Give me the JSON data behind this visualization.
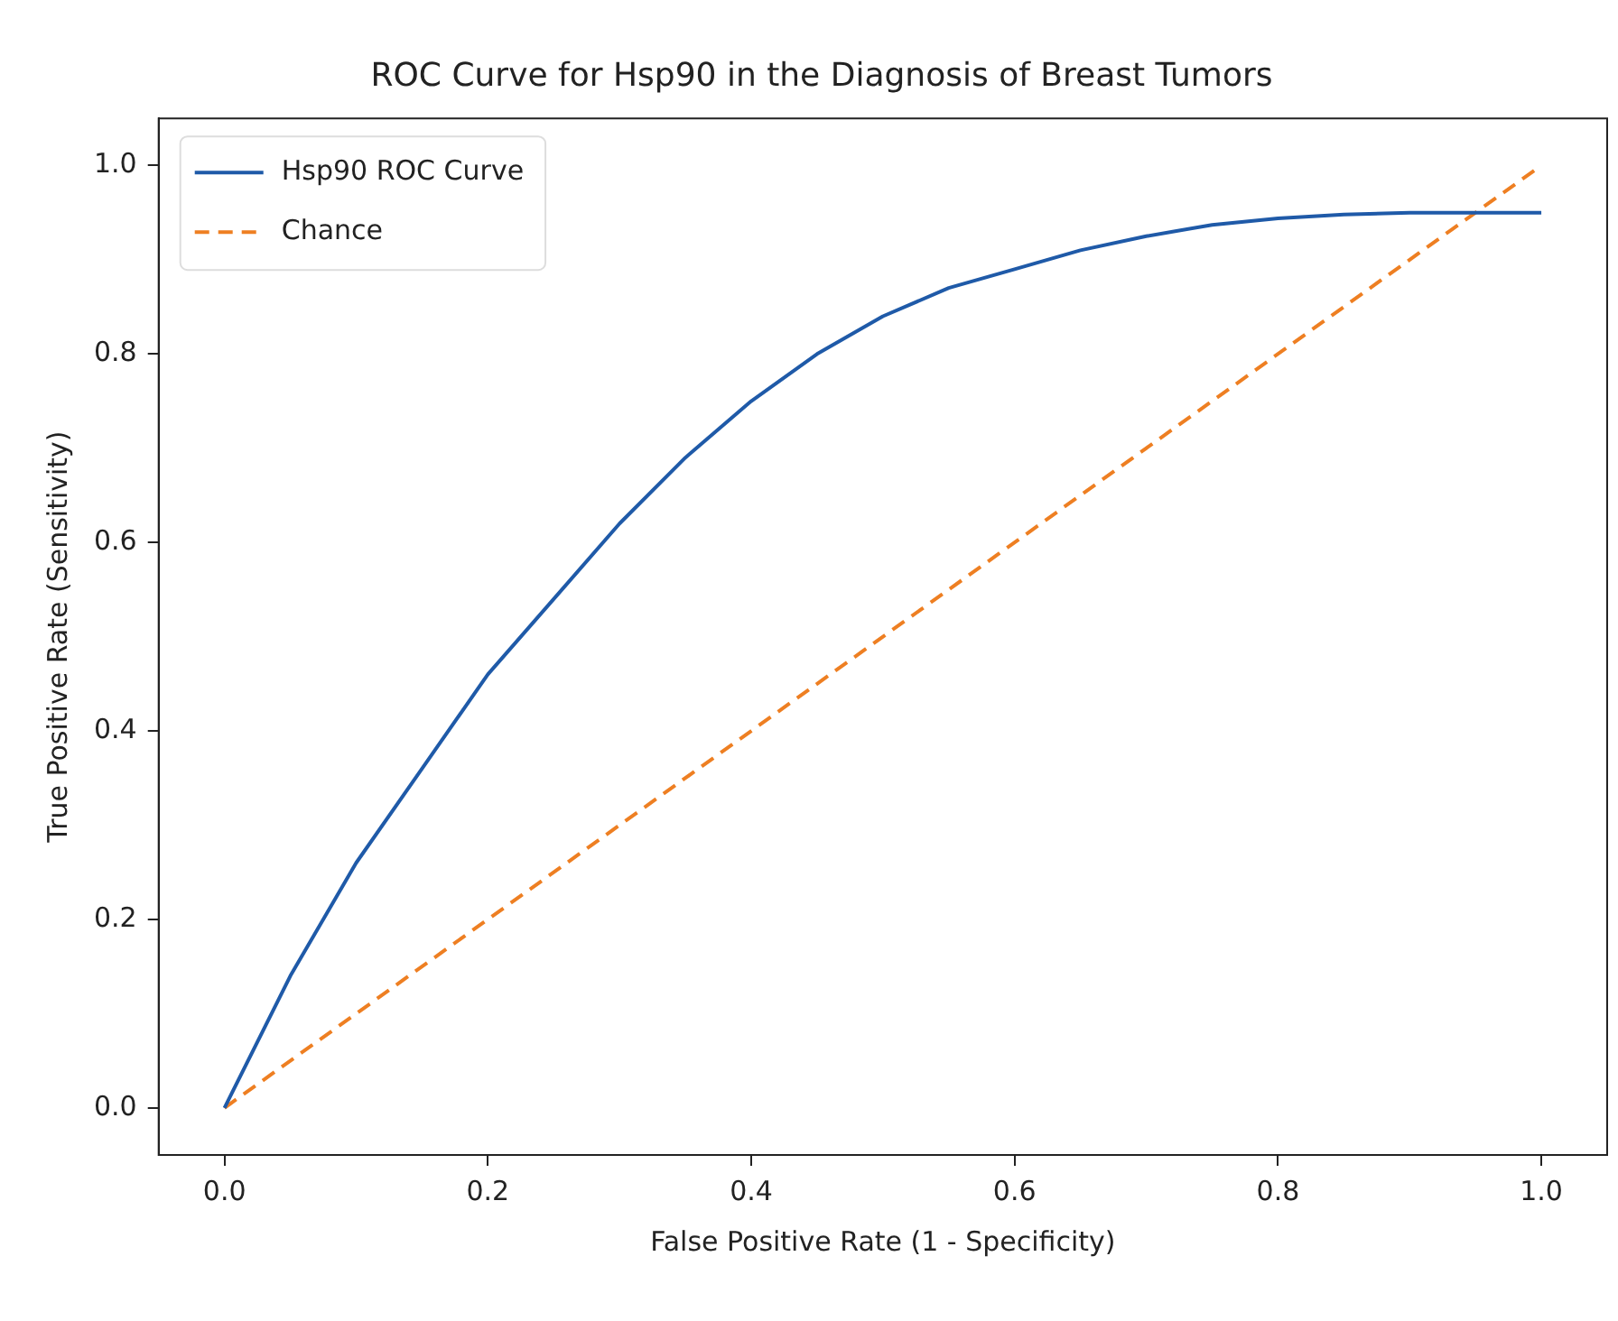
{
  "chart_data": {
    "type": "line",
    "title": "ROC Curve for Hsp90 in the Diagnosis of Breast Tumors",
    "xlabel": "False Positive Rate (1 - Specificity)",
    "ylabel": "True Positive Rate (Sensitivity)",
    "x": [
      0,
      0.05,
      0.1,
      0.15,
      0.2,
      0.25,
      0.3,
      0.35,
      0.4,
      0.45,
      0.5,
      0.55,
      0.6,
      0.65,
      0.7,
      0.75,
      0.8,
      0.85,
      0.9,
      0.95,
      1.0
    ],
    "series": [
      {
        "name": "Hsp90 ROC Curve",
        "color": "#1f5aa8",
        "line_style": "solid",
        "values": [
          0,
          0.14,
          0.26,
          0.36,
          0.46,
          0.54,
          0.62,
          0.69,
          0.75,
          0.8,
          0.84,
          0.87,
          0.89,
          0.91,
          0.925,
          0.937,
          0.944,
          0.948,
          0.95,
          0.95,
          0.95
        ]
      },
      {
        "name": "Chance",
        "color": "#ee7f22",
        "line_style": "dashed",
        "x": [
          0,
          1
        ],
        "values": [
          0,
          1
        ]
      }
    ],
    "xlim": [
      -0.05,
      1.05
    ],
    "ylim": [
      -0.05,
      1.05
    ],
    "xticks": [
      {
        "value": 0,
        "label": "0.0"
      },
      {
        "value": 0.2,
        "label": "0.2"
      },
      {
        "value": 0.4,
        "label": "0.4"
      },
      {
        "value": 0.6,
        "label": "0.6"
      },
      {
        "value": 0.8,
        "label": "0.8"
      },
      {
        "value": 1,
        "label": "1.0"
      }
    ],
    "yticks": [
      {
        "value": 0,
        "label": "0.0"
      },
      {
        "value": 0.2,
        "label": "0.2"
      },
      {
        "value": 0.4,
        "label": "0.4"
      },
      {
        "value": 0.6,
        "label": "0.6"
      },
      {
        "value": 0.8,
        "label": "0.8"
      },
      {
        "value": 1,
        "label": "1.0"
      }
    ],
    "grid": false,
    "legend": "top left",
    "marker": "none"
  }
}
